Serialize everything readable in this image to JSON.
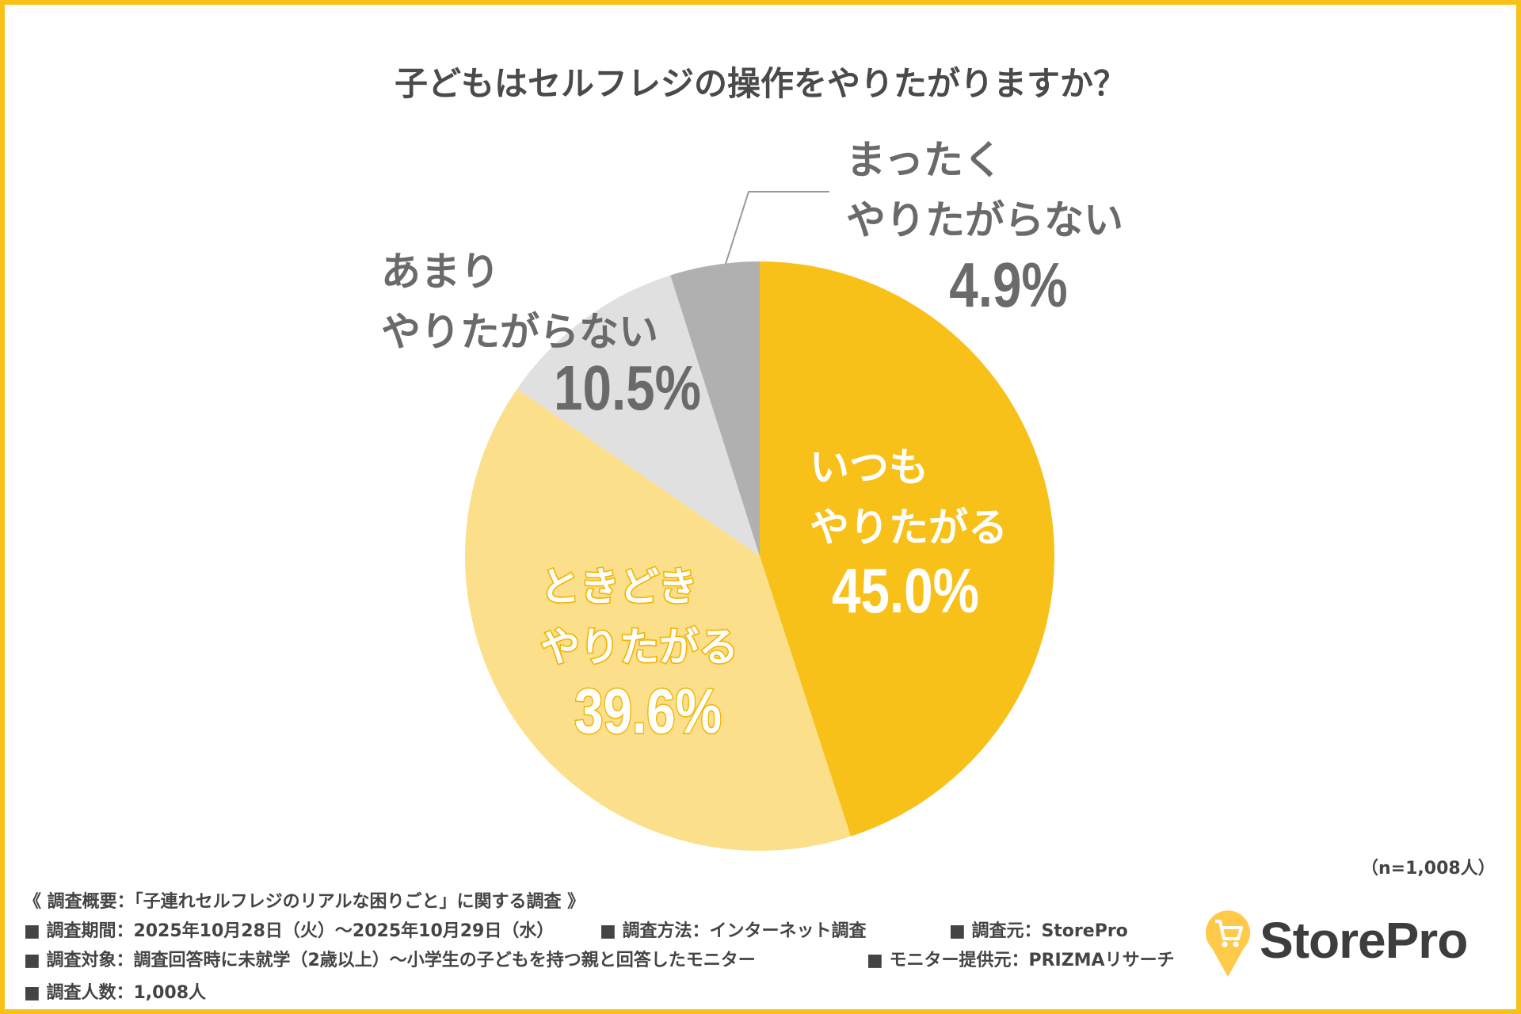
{
  "chart_data": {
    "type": "pie",
    "title": "子どもはセルフレジの操作をやりたがりますか？",
    "start": "top",
    "direction": "clockwise",
    "slices": [
      {
        "label": [
          "いつも",
          "やりたがる"
        ],
        "value": 45.0,
        "value_label": "45.0%",
        "color": "#F8C11A"
      },
      {
        "label": [
          "ときどき",
          "やりたがる"
        ],
        "value": 39.6,
        "value_label": "39.6%",
        "color": "#FCDF8A"
      },
      {
        "label": [
          "あまり",
          "やりたがらない"
        ],
        "value": 10.5,
        "value_label": "10.5%",
        "color": "#E0E0E0"
      },
      {
        "label": [
          "まったく",
          "やりたがらない"
        ],
        "value": 4.9,
        "value_label": "4.9%",
        "color": "#B0B0B0"
      }
    ],
    "sample_size": "（n=1,008人）"
  },
  "footer": {
    "summary": "《 調査概要：「子連れセルフレジのリアルな困りごと」に関する調査 》",
    "period": "■ 調査期間：2025年10月28日（火）～2025年10月29日（水）",
    "method": "■ 調査方法：インターネット調査",
    "source": "■ 調査元：StorePro",
    "target": "■ 調査対象：調査回答時に未就学（2歳以上）～小学生の子どもを持つ親と回答したモニター",
    "provider": "■ モニター提供元：PRIZMAリサーチ",
    "count": "■ 調査人数：1,008人"
  },
  "logo": {
    "text": "StorePro",
    "color": "#FFC94A"
  },
  "border_color": "#F8C11A"
}
